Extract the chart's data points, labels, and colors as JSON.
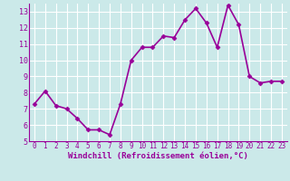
{
  "x": [
    0,
    1,
    2,
    3,
    4,
    5,
    6,
    7,
    8,
    9,
    10,
    11,
    12,
    13,
    14,
    15,
    16,
    17,
    18,
    19,
    20,
    21,
    22,
    23
  ],
  "y": [
    7.3,
    8.1,
    7.2,
    7.0,
    6.4,
    5.7,
    5.7,
    5.4,
    7.3,
    10.0,
    10.8,
    10.8,
    11.5,
    11.4,
    12.5,
    13.2,
    12.3,
    10.8,
    13.4,
    12.2,
    9.0,
    8.6,
    8.7,
    8.7
  ],
  "line_color": "#990099",
  "marker": "D",
  "marker_size": 2.5,
  "bg_color": "#cbe9e9",
  "grid_color": "#ffffff",
  "xlabel": "Windchill (Refroidissement éolien,°C)",
  "xlabel_color": "#990099",
  "tick_color": "#990099",
  "ylim": [
    5,
    13.5
  ],
  "yticks": [
    5,
    6,
    7,
    8,
    9,
    10,
    11,
    12,
    13
  ],
  "xticks": [
    0,
    1,
    2,
    3,
    4,
    5,
    6,
    7,
    8,
    9,
    10,
    11,
    12,
    13,
    14,
    15,
    16,
    17,
    18,
    19,
    20,
    21,
    22,
    23
  ],
  "line_width": 1.2,
  "tick_fontsize": 5.5,
  "xlabel_fontsize": 6.5
}
